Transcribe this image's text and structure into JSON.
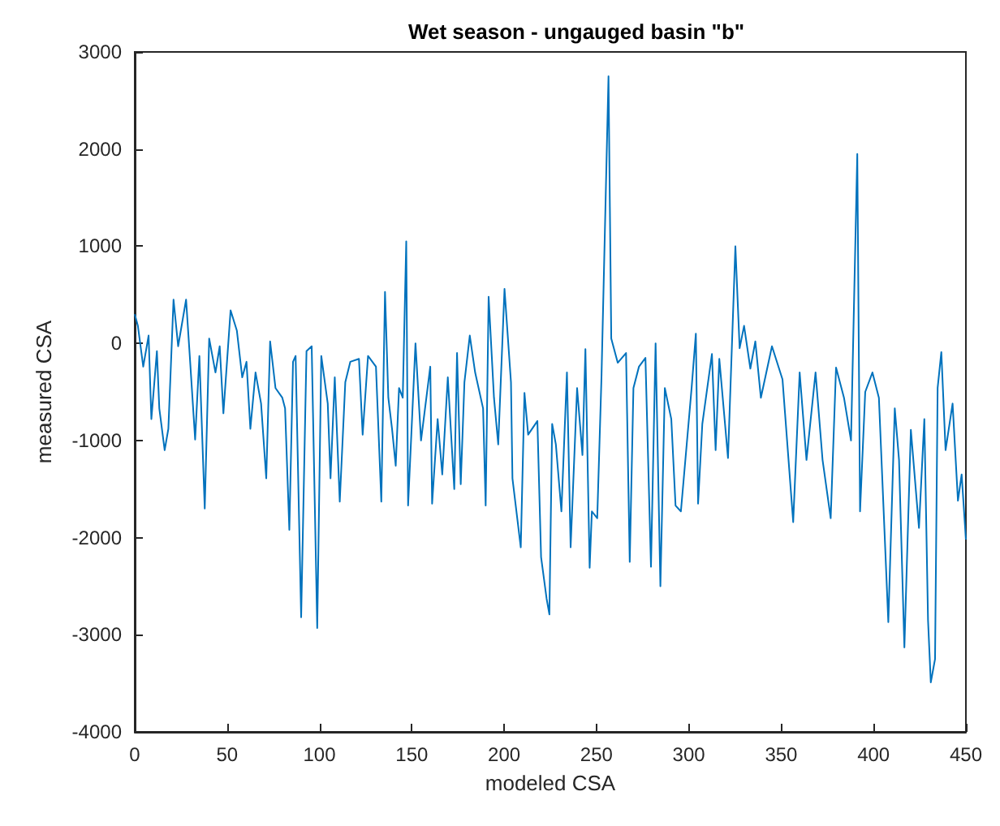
{
  "chart_data": {
    "type": "line",
    "title": "Wet season - ungauged basin \"b\"",
    "xlabel": "modeled CSA",
    "ylabel": "measured CSA",
    "series": [
      {
        "color": "#0072bd",
        "x": [
          0,
          1.7,
          4.6,
          7.5,
          9,
          12,
          13.3,
          16.2,
          18.2,
          21,
          23.5,
          27.8,
          29.8,
          32.7,
          35,
          37.9,
          40.3,
          43.7,
          46,
          48,
          51.9,
          55.3,
          58.2,
          60.5,
          62.6,
          65.4,
          68.4,
          71.2,
          73.3,
          76.2,
          79.9,
          81.4,
          83.7,
          85.7,
          87.1,
          90.1,
          93,
          95.8,
          98.8,
          101,
          104.5,
          106,
          108.3,
          111,
          114,
          116.7,
          121.4,
          123.4,
          126.3,
          130.6,
          133.5,
          135.5,
          137.3,
          139.3,
          141.3,
          143.1,
          145.1,
          147,
          148,
          152,
          155,
          160,
          161,
          164,
          166.5,
          169.5,
          173,
          174.5,
          176.5,
          178.5,
          181.4,
          184.3,
          188.6,
          190,
          191.6,
          194.5,
          196.8,
          200.2,
          203.7,
          204.5,
          209,
          211,
          213,
          218,
          220,
          223,
          224.5,
          226,
          228,
          231,
          234,
          236,
          239.5,
          242.4,
          244,
          246.3,
          247.5,
          250.4,
          252.7,
          256.5,
          258,
          261.5,
          266,
          268,
          270,
          273,
          276.5,
          279.5,
          282,
          284.6,
          287,
          290.5,
          292.8,
          295.7,
          301.5,
          303.8,
          305,
          307.3,
          312.5,
          314.5,
          316.5,
          321.2,
          325.2,
          327.5,
          329.9,
          333.3,
          336,
          339,
          345,
          350.7,
          356.5,
          360,
          363.7,
          368.6,
          372.4,
          376.8,
          379.7,
          384,
          387.8,
          391.2,
          392.7,
          395.5,
          399.4,
          402.9,
          408,
          411.5,
          413.8,
          416.7,
          420.2,
          424.6,
          427.5,
          429.5,
          431,
          433.3,
          434.7,
          436.7,
          439,
          442.8,
          445.7,
          447.7,
          450
        ],
        "values": [
          300,
          180,
          -240,
          80,
          -780,
          -80,
          -670,
          -1100,
          -880,
          450,
          -30,
          450,
          -130,
          -990,
          -130,
          -1700,
          50,
          -300,
          -30,
          -720,
          340,
          130,
          -350,
          -190,
          -880,
          -300,
          -620,
          -1390,
          20,
          -460,
          -560,
          -670,
          -1920,
          -190,
          -130,
          -2820,
          -80,
          -30,
          -2930,
          -130,
          -620,
          -1390,
          -350,
          -1630,
          -400,
          -190,
          -160,
          -940,
          -130,
          -240,
          -1630,
          530,
          -560,
          -880,
          -1260,
          -460,
          -560,
          1050,
          -1670,
          0,
          -1000,
          -240,
          -1650,
          -780,
          -1350,
          -350,
          -1500,
          -100,
          -1450,
          -400,
          80,
          -300,
          -670,
          -1670,
          480,
          -560,
          -1040,
          560,
          -400,
          -1390,
          -2100,
          -510,
          -940,
          -800,
          -2200,
          -2630,
          -2790,
          -830,
          -1040,
          -1730,
          -300,
          -2100,
          -460,
          -1150,
          -60,
          -2310,
          -1730,
          -1800,
          -350,
          2750,
          50,
          -200,
          -100,
          -2250,
          -460,
          -240,
          -150,
          -2300,
          0,
          -2500,
          -460,
          -780,
          -1670,
          -1730,
          -460,
          100,
          -1650,
          -830,
          -110,
          -1100,
          -160,
          -1180,
          1000,
          -50,
          180,
          -260,
          20,
          -560,
          -30,
          -370,
          -1840,
          -300,
          -1200,
          -300,
          -1200,
          -1800,
          -250,
          -560,
          -1000,
          1950,
          -1730,
          -500,
          -300,
          -560,
          -2870,
          -670,
          -1200,
          -3130,
          -890,
          -1900,
          -780,
          -2850,
          -3490,
          -3250,
          -460,
          -90,
          -1100,
          -620,
          -1620,
          -1350,
          -2020
        ]
      }
    ],
    "xlim": [
      0,
      450
    ],
    "xticks": [
      0,
      50,
      100,
      150,
      200,
      250,
      300,
      350,
      400,
      450
    ],
    "ylim": [
      -4000,
      3000
    ],
    "yticks": [
      -4000,
      -3000,
      -2000,
      -1000,
      0,
      1000,
      2000,
      3000
    ],
    "grid": false,
    "marker": "none",
    "line_style": "solid"
  }
}
